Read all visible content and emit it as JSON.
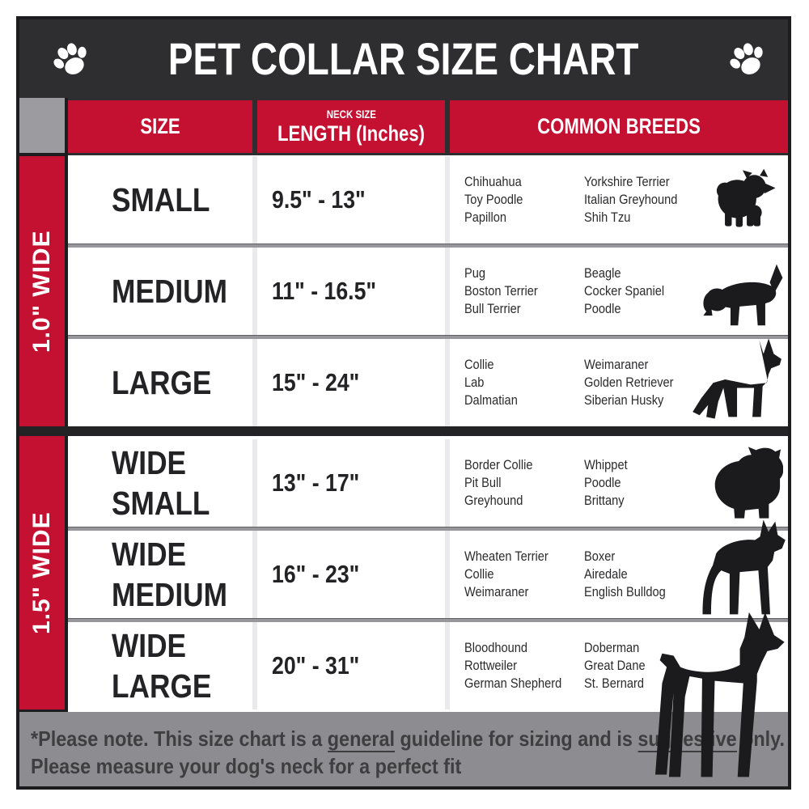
{
  "title": "PET COLLAR SIZE CHART",
  "header_icons": {
    "left": "paw-icon",
    "right": "paw-icon"
  },
  "table_header": {
    "size": "SIZE",
    "neck_size_label": "NECK SIZE",
    "neck_length_label": "LENGTH (Inches)",
    "breeds": "COMMON BREEDS"
  },
  "sections": [
    {
      "width_label": "1.0\" WIDE",
      "rows": [
        {
          "size": "SMALL",
          "neck": "9.5\" - 13\"",
          "breeds_a": [
            "Chihuahua",
            "Toy Poodle",
            "Papillon"
          ],
          "breeds_b": [
            "Yorkshire Terrier",
            "Italian Greyhound",
            "Shih Tzu"
          ],
          "icon": "fluffy-toy-dog-icon"
        },
        {
          "size": "MEDIUM",
          "neck": "11\" - 16.5\"",
          "breeds_a": [
            "Pug",
            "Boston Terrier",
            "Bull Terrier"
          ],
          "breeds_b": [
            "Beagle",
            "Cocker Spaniel",
            "Poodle"
          ],
          "icon": "beagle-dog-icon"
        },
        {
          "size": "LARGE",
          "neck": "15\" - 24\"",
          "breeds_a": [
            "Collie",
            "Lab",
            "Dalmatian"
          ],
          "breeds_b": [
            "Weimaraner",
            "Golden Retriever",
            "Siberian Husky"
          ],
          "icon": "shepherd-dog-icon"
        }
      ]
    },
    {
      "width_label": "1.5\" WIDE",
      "rows": [
        {
          "size": "WIDE\nSMALL",
          "neck": "13\" - 17\"",
          "breeds_a": [
            "Border Collie",
            "Pit Bull",
            "Greyhound"
          ],
          "breeds_b": [
            "Whippet",
            "Poodle",
            "Brittany"
          ],
          "icon": "bulldog-dog-icon"
        },
        {
          "size": "WIDE\nMEDIUM",
          "neck": "16\" - 23\"",
          "breeds_a": [
            "Wheaten Terrier",
            "Collie",
            "Weimaraner"
          ],
          "breeds_b": [
            "Boxer",
            "Airedale",
            "English Bulldog"
          ],
          "icon": "pitbull-dog-icon"
        },
        {
          "size": "WIDE\nLARGE",
          "neck": "20\" - 31\"",
          "breeds_a": [
            "Bloodhound",
            "Rottweiler",
            "German Shepherd"
          ],
          "breeds_b": [
            "Doberman",
            "Great Dane",
            "St. Bernard"
          ],
          "icon": "doberman-dog-icon"
        }
      ]
    }
  ],
  "footer": {
    "line1_parts": [
      {
        "text": "*Please note. This size chart is a "
      },
      {
        "text": "general",
        "underline": true
      },
      {
        "text": " guideline for sizing and is "
      },
      {
        "text": "suggestive",
        "underline": true
      },
      {
        "text": " only."
      }
    ],
    "line2": "Please measure your dog's neck for a perfect fit"
  },
  "colors": {
    "accent_red": "#c41132",
    "header_black": "#2e2e30",
    "corner_gray": "#9c9ca0",
    "footer_gray": "#8d8d91",
    "separator_gray": "#97979b",
    "text_black": "#232325",
    "white": "#ffffff"
  }
}
